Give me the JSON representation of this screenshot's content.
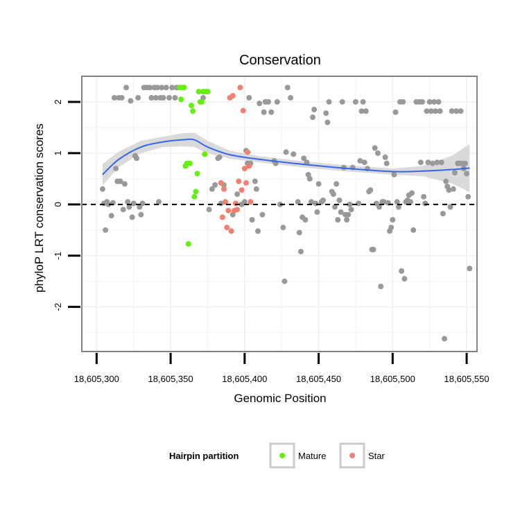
{
  "chart_data": {
    "type": "scatter",
    "title": "Conservation",
    "xlabel": "Genomic Position",
    "ylabel": "phyloP LRT conservation scores",
    "xlim": [
      18605290,
      18605557
    ],
    "ylim": [
      -2.87,
      2.5
    ],
    "x_ticks": [
      18605300,
      18605350,
      18605400,
      18605450,
      18605500,
      18605550
    ],
    "x_tick_labels": [
      "18,605,300",
      "18,605,350",
      "18,605,400",
      "18,605,450",
      "18,605,500",
      "18,605,550"
    ],
    "y_ticks": [
      -2,
      -1,
      0,
      1,
      2
    ],
    "y_tick_labels": [
      "-2",
      "-1",
      "0",
      "1",
      "2"
    ],
    "reference_line": {
      "y": 0,
      "style": "dashed"
    },
    "grid": true,
    "legend": {
      "title": "Hairpin partition",
      "position": "bottom",
      "entries": [
        {
          "label": "Mature",
          "color": "#66ee11"
        },
        {
          "label": "Star",
          "color": "#f08070"
        }
      ]
    },
    "colors": {
      "other": "#999999",
      "mature": "#66ee11",
      "star": "#f08070",
      "smooth": "#3366ee",
      "band": "#d6d6d6"
    },
    "smooth": {
      "x": [
        18605304,
        18605315,
        18605330,
        18605345,
        18605358,
        18605366,
        18605375,
        18605390,
        18605410,
        18605440,
        18605470,
        18605500,
        18605520,
        18605540,
        18605552
      ],
      "y": [
        0.58,
        0.88,
        1.12,
        1.22,
        1.26,
        1.26,
        1.12,
        0.97,
        0.88,
        0.78,
        0.7,
        0.64,
        0.65,
        0.68,
        0.71
      ],
      "lower": [
        0.37,
        0.73,
        1.0,
        1.12,
        1.13,
        1.12,
        1.0,
        0.89,
        0.82,
        0.72,
        0.64,
        0.58,
        0.55,
        0.41,
        0.24
      ],
      "upper": [
        0.79,
        1.03,
        1.24,
        1.32,
        1.39,
        1.4,
        1.24,
        1.05,
        0.94,
        0.84,
        0.76,
        0.7,
        0.75,
        0.95,
        1.18
      ]
    },
    "series": [
      {
        "name": "Other",
        "points": [
          [
            18605304,
            0.3
          ],
          [
            18605305,
            0.02
          ],
          [
            18605306,
            -0.5
          ],
          [
            18605307,
            0.05
          ],
          [
            18605308,
            0.0
          ],
          [
            18605310,
            -0.22
          ],
          [
            18605311,
            0.03
          ],
          [
            18605312,
            2.08
          ],
          [
            18605313,
            0.7
          ],
          [
            18605314,
            0.45
          ],
          [
            18605315,
            2.08
          ],
          [
            18605316,
            0.45
          ],
          [
            18605317,
            2.08
          ],
          [
            18605318,
            -0.1
          ],
          [
            18605319,
            0.4
          ],
          [
            18605320,
            2.28
          ],
          [
            18605321,
            0.05
          ],
          [
            18605322,
            -0.05
          ],
          [
            18605323,
            2.02
          ],
          [
            18605324,
            -0.25
          ],
          [
            18605325,
            0.02
          ],
          [
            18605326,
            0.95
          ],
          [
            18605327,
            0.9
          ],
          [
            18605328,
            2.08
          ],
          [
            18605329,
            -0.05
          ],
          [
            18605330,
            -0.2
          ],
          [
            18605331,
            0.02
          ],
          [
            18605332,
            2.28
          ],
          [
            18605334,
            2.28
          ],
          [
            18605336,
            2.28
          ],
          [
            18605337,
            2.08
          ],
          [
            18605339,
            2.28
          ],
          [
            18605340,
            2.08
          ],
          [
            18605341,
            2.28
          ],
          [
            18605342,
            0.05
          ],
          [
            18605343,
            2.08
          ],
          [
            18605344,
            2.28
          ],
          [
            18605345,
            2.08
          ],
          [
            18605347,
            2.28
          ],
          [
            18605349,
            2.08
          ],
          [
            18605351,
            2.28
          ],
          [
            18605353,
            2.08
          ],
          [
            18605354,
            2.28
          ],
          [
            18605372,
            2.08
          ],
          [
            18605376,
            -0.1
          ],
          [
            18605378,
            0.3
          ],
          [
            18605380,
            0.38
          ],
          [
            18605382,
            0.9
          ],
          [
            18605383,
            0.92
          ],
          [
            18605384,
            0.02
          ],
          [
            18605386,
            0.38
          ],
          [
            18605392,
            -0.2
          ],
          [
            18605395,
            0.2
          ],
          [
            18605398,
            0.0
          ],
          [
            18605400,
            0.05
          ],
          [
            18605401,
            1.05
          ],
          [
            18605402,
            0.8
          ],
          [
            18605403,
            2.08
          ],
          [
            18605404,
            0.8
          ],
          [
            18605405,
            -0.3
          ],
          [
            18605407,
            0.45
          ],
          [
            18605408,
            0.3
          ],
          [
            18605409,
            -0.52
          ],
          [
            18605410,
            1.97
          ],
          [
            18605412,
            -0.2
          ],
          [
            18605413,
            1.8
          ],
          [
            18605414,
            2.0
          ],
          [
            18605416,
            2.0
          ],
          [
            18605418,
            1.8
          ],
          [
            18605420,
            0.85
          ],
          [
            18605421,
            0.8
          ],
          [
            18605422,
            2.0
          ],
          [
            18605424,
            0.0
          ],
          [
            18605426,
            -0.45
          ],
          [
            18605427,
            -1.5
          ],
          [
            18605428,
            1.02
          ],
          [
            18605429,
            2.28
          ],
          [
            18605431,
            2.08
          ],
          [
            18605433,
            0.98
          ],
          [
            18605436,
            0.05
          ],
          [
            18605437,
            -0.55
          ],
          [
            18605438,
            -0.92
          ],
          [
            18605439,
            -0.25
          ],
          [
            18605440,
            0.9
          ],
          [
            18605441,
            -0.3
          ],
          [
            18605442,
            0.82
          ],
          [
            18605443,
            0.58
          ],
          [
            18605444,
            0.5
          ],
          [
            18605445,
            0.05
          ],
          [
            18605446,
            1.7
          ],
          [
            18605447,
            1.85
          ],
          [
            18605448,
            0.02
          ],
          [
            18605449,
            -0.15
          ],
          [
            18605450,
            0.4
          ],
          [
            18605452,
            0.05
          ],
          [
            18605453,
            0.08
          ],
          [
            18605455,
            1.78
          ],
          [
            18605456,
            1.6
          ],
          [
            18605457,
            2.0
          ],
          [
            18605459,
            0.25
          ],
          [
            18605460,
            0.2
          ],
          [
            18605461,
            -0.05
          ],
          [
            18605462,
            0.4
          ],
          [
            18605463,
            -0.3
          ],
          [
            18605464,
            0.08
          ],
          [
            18605465,
            -0.15
          ],
          [
            18605466,
            2.0
          ],
          [
            18605467,
            0.72
          ],
          [
            18605468,
            -0.2
          ],
          [
            18605469,
            -0.3
          ],
          [
            18605470,
            -0.2
          ],
          [
            18605471,
            0.0
          ],
          [
            18605472,
            -0.1
          ],
          [
            18605473,
            0.72
          ],
          [
            18605475,
            2.0
          ],
          [
            18605477,
            0.02
          ],
          [
            18605478,
            0.85
          ],
          [
            18605479,
            1.82
          ],
          [
            18605480,
            2.0
          ],
          [
            18605481,
            0.82
          ],
          [
            18605482,
            1.82
          ],
          [
            18605483,
            0.7
          ],
          [
            18605484,
            0.25
          ],
          [
            18605485,
            0.28
          ],
          [
            18605486,
            -0.88
          ],
          [
            18605487,
            -0.88
          ],
          [
            18605488,
            1.1
          ],
          [
            18605489,
            0.02
          ],
          [
            18605490,
            1.0
          ],
          [
            18605491,
            -0.05
          ],
          [
            18605492,
            -1.6
          ],
          [
            18605493,
            0.05
          ],
          [
            18605494,
            0.05
          ],
          [
            18605495,
            0.92
          ],
          [
            18605496,
            0.8
          ],
          [
            18605497,
            0.03
          ],
          [
            18605498,
            -0.52
          ],
          [
            18605499,
            -0.45
          ],
          [
            18605500,
            -0.3
          ],
          [
            18605501,
            0.58
          ],
          [
            18605502,
            1.8
          ],
          [
            18605503,
            0.05
          ],
          [
            18605504,
            -0.05
          ],
          [
            18605505,
            2.0
          ],
          [
            18605506,
            -1.3
          ],
          [
            18605507,
            2.0
          ],
          [
            18605508,
            -1.45
          ],
          [
            18605509,
            0.05
          ],
          [
            18605510,
            0.08
          ],
          [
            18605511,
            0.18
          ],
          [
            18605512,
            0.05
          ],
          [
            18605513,
            0.22
          ],
          [
            18605514,
            -0.5
          ],
          [
            18605516,
            2.0
          ],
          [
            18605518,
            2.0
          ],
          [
            18605519,
            0.82
          ],
          [
            18605520,
            2.0
          ],
          [
            18605521,
            0.15
          ],
          [
            18605522,
            0.02
          ],
          [
            18605523,
            1.82
          ],
          [
            18605524,
            0.82
          ],
          [
            18605525,
            2.0
          ],
          [
            18605526,
            1.82
          ],
          [
            18605527,
            0.8
          ],
          [
            18605528,
            2.0
          ],
          [
            18605529,
            1.82
          ],
          [
            18605530,
            0.82
          ],
          [
            18605531,
            2.0
          ],
          [
            18605532,
            1.82
          ],
          [
            18605533,
            0.82
          ],
          [
            18605534,
            -0.18
          ],
          [
            18605535,
            -2.62
          ],
          [
            18605536,
            0.45
          ],
          [
            18605537,
            0.35
          ],
          [
            18605538,
            0.28
          ],
          [
            18605539,
            -0.05
          ],
          [
            18605540,
            1.82
          ],
          [
            18605541,
            0.3
          ],
          [
            18605542,
            0.62
          ],
          [
            18605543,
            1.82
          ],
          [
            18605544,
            0.8
          ],
          [
            18605545,
            0.8
          ],
          [
            18605546,
            1.82
          ],
          [
            18605547,
            0.8
          ],
          [
            18605548,
            0.7
          ],
          [
            18605549,
            0.8
          ],
          [
            18605550,
            0.6
          ],
          [
            18605551,
            0.15
          ],
          [
            18605552,
            -1.25
          ]
        ]
      },
      {
        "name": "Mature",
        "points": [
          [
            18605356,
            2.28
          ],
          [
            18605357,
            2.05
          ],
          [
            18605358,
            2.28
          ],
          [
            18605359,
            2.28
          ],
          [
            18605360,
            0.75
          ],
          [
            18605361,
            0.8
          ],
          [
            18605362,
            -0.77
          ],
          [
            18605363,
            0.8
          ],
          [
            18605364,
            1.93
          ],
          [
            18605365,
            1.82
          ],
          [
            18605366,
            0.15
          ],
          [
            18605367,
            0.25
          ],
          [
            18605368,
            0.6
          ],
          [
            18605369,
            2.2
          ],
          [
            18605370,
            2.0
          ],
          [
            18605371,
            2.0
          ],
          [
            18605372,
            2.2
          ],
          [
            18605373,
            0.98
          ],
          [
            18605374,
            2.2
          ],
          [
            18605375,
            2.2
          ]
        ]
      },
      {
        "name": "Star",
        "points": [
          [
            18605384,
            0.42
          ],
          [
            18605385,
            -0.25
          ],
          [
            18605386,
            0.3
          ],
          [
            18605387,
            0.05
          ],
          [
            18605388,
            -0.45
          ],
          [
            18605389,
            -0.12
          ],
          [
            18605390,
            2.08
          ],
          [
            18605391,
            -0.52
          ],
          [
            18605392,
            2.12
          ],
          [
            18605393,
            -0.12
          ],
          [
            18605394,
            0.02
          ],
          [
            18605395,
            -0.1
          ],
          [
            18605396,
            0.45
          ],
          [
            18605397,
            2.28
          ],
          [
            18605398,
            0.28
          ],
          [
            18605399,
            1.83
          ],
          [
            18605400,
            0.7
          ],
          [
            18605401,
            0.42
          ],
          [
            18605402,
            1.02
          ],
          [
            18605403,
            0.75
          ],
          [
            18605404,
            0.05
          ]
        ]
      }
    ]
  }
}
